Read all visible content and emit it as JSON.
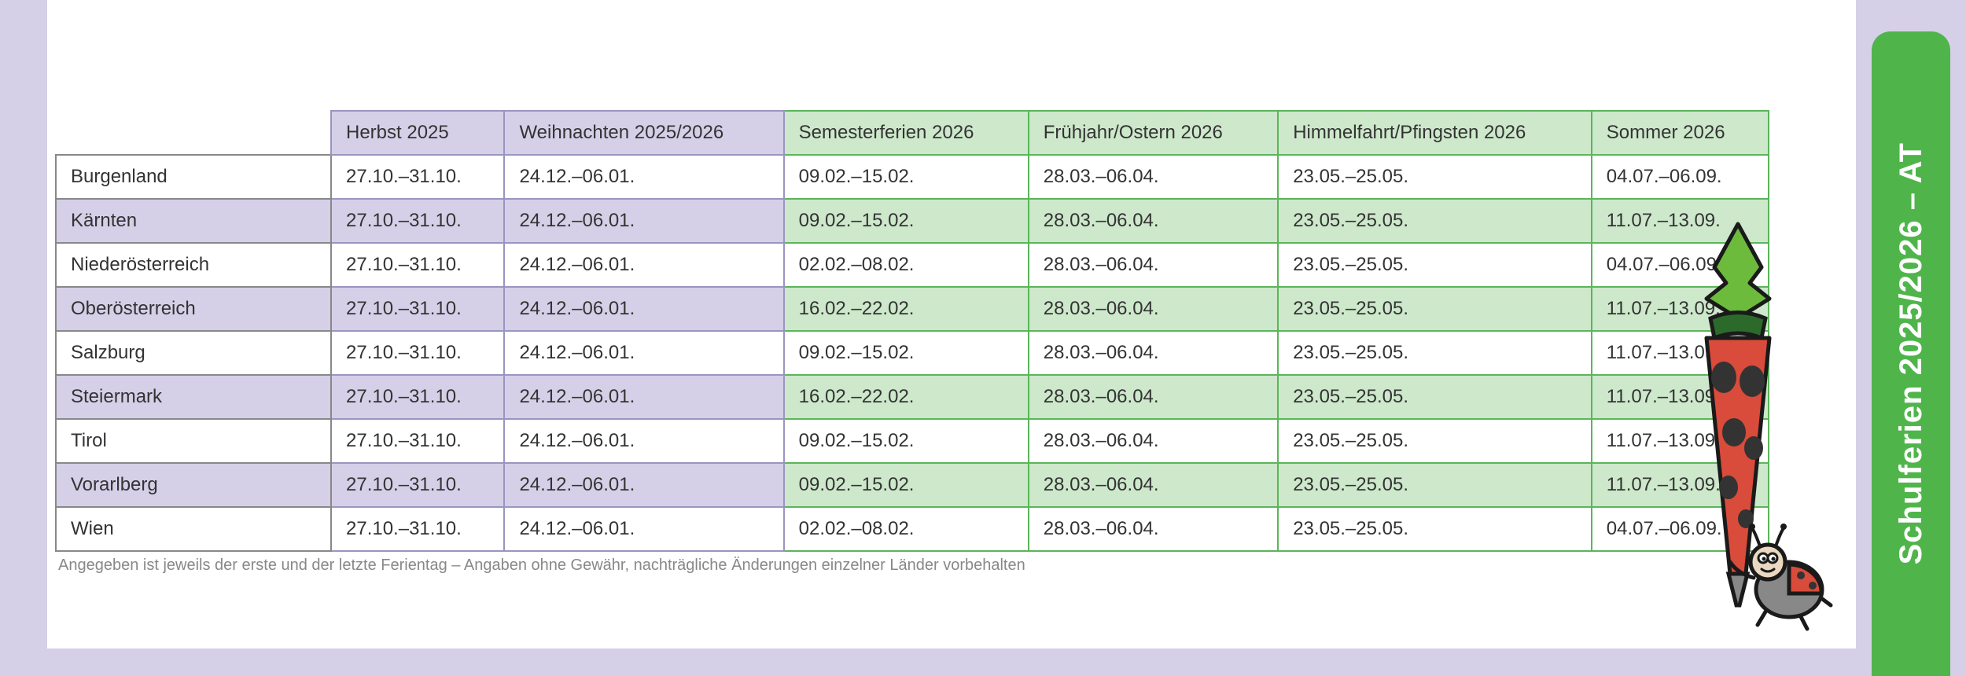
{
  "side_tab": {
    "label": "Schulferien 2025/2026 – AT",
    "bg": "#4fb54a",
    "fg": "#ffffff"
  },
  "footnote": "Angegeben ist jeweils der erste und der letzte Ferientag – Angaben ohne Gewähr, nachträgliche Änderungen einzelner Länder vorbehalten",
  "table": {
    "header_purple_bg": "#d5d0e8",
    "header_green_bg": "#cde8cb",
    "row_purple_bg": "#d5d0e8",
    "row_green_bg": "#cde8cb",
    "border_purple": "#9a95c0",
    "border_green": "#5bb55a",
    "columns": [
      {
        "label": "",
        "section": "name"
      },
      {
        "label": "Herbst 2025",
        "section": "purple"
      },
      {
        "label": "Weihnachten 2025/2026",
        "section": "purple"
      },
      {
        "label": "Semesterferien 2026",
        "section": "green"
      },
      {
        "label": "Frühjahr/Ostern 2026",
        "section": "green"
      },
      {
        "label": "Himmelfahrt/Pfingsten 2026",
        "section": "green"
      },
      {
        "label": "Sommer 2026",
        "section": "green"
      }
    ],
    "rows": [
      {
        "name": "Burgenland",
        "herbst": "27.10.–31.10.",
        "weihnachten": "24.12.–06.01.",
        "semester": "09.02.–15.02.",
        "fruehjahr": "28.03.–06.04.",
        "himmelfahrt": "23.05.–25.05.",
        "sommer": "04.07.–06.09."
      },
      {
        "name": "Kärnten",
        "herbst": "27.10.–31.10.",
        "weihnachten": "24.12.–06.01.",
        "semester": "09.02.–15.02.",
        "fruehjahr": "28.03.–06.04.",
        "himmelfahrt": "23.05.–25.05.",
        "sommer": "11.07.–13.09."
      },
      {
        "name": "Niederösterreich",
        "herbst": "27.10.–31.10.",
        "weihnachten": "24.12.–06.01.",
        "semester": "02.02.–08.02.",
        "fruehjahr": "28.03.–06.04.",
        "himmelfahrt": "23.05.–25.05.",
        "sommer": "04.07.–06.09."
      },
      {
        "name": "Oberösterreich",
        "herbst": "27.10.–31.10.",
        "weihnachten": "24.12.–06.01.",
        "semester": "16.02.–22.02.",
        "fruehjahr": "28.03.–06.04.",
        "himmelfahrt": "23.05.–25.05.",
        "sommer": "11.07.–13.09."
      },
      {
        "name": "Salzburg",
        "herbst": "27.10.–31.10.",
        "weihnachten": "24.12.–06.01.",
        "semester": "09.02.–15.02.",
        "fruehjahr": "28.03.–06.04.",
        "himmelfahrt": "23.05.–25.05.",
        "sommer": "11.07.–13.09."
      },
      {
        "name": "Steiermark",
        "herbst": "27.10.–31.10.",
        "weihnachten": "24.12.–06.01.",
        "semester": "16.02.–22.02.",
        "fruehjahr": "28.03.–06.04.",
        "himmelfahrt": "23.05.–25.05.",
        "sommer": "11.07.–13.09."
      },
      {
        "name": "Tirol",
        "herbst": "27.10.–31.10.",
        "weihnachten": "24.12.–06.01.",
        "semester": "09.02.–15.02.",
        "fruehjahr": "28.03.–06.04.",
        "himmelfahrt": "23.05.–25.05.",
        "sommer": "11.07.–13.09."
      },
      {
        "name": "Vorarlberg",
        "herbst": "27.10.–31.10.",
        "weihnachten": "24.12.–06.01.",
        "semester": "09.02.–15.02.",
        "fruehjahr": "28.03.–06.04.",
        "himmelfahrt": "23.05.–25.05.",
        "sommer": "11.07.–13.09."
      },
      {
        "name": "Wien",
        "herbst": "27.10.–31.10.",
        "weihnachten": "24.12.–06.01.",
        "semester": "02.02.–08.02.",
        "fruehjahr": "28.03.–06.04.",
        "himmelfahrt": "23.05.–25.05.",
        "sommer": "04.07.–06.09."
      }
    ]
  },
  "illustration": {
    "cone_body_color": "#d94b3a",
    "cone_spots_color": "#333333",
    "cone_top_color": "#6cbb3c",
    "cone_tie_color": "#2b6a2b",
    "ladybug_body_color": "#888888",
    "ladybug_wing_color": "#d94b3a",
    "ladybug_spots_color": "#333333",
    "outline_color": "#1a1a1a"
  }
}
